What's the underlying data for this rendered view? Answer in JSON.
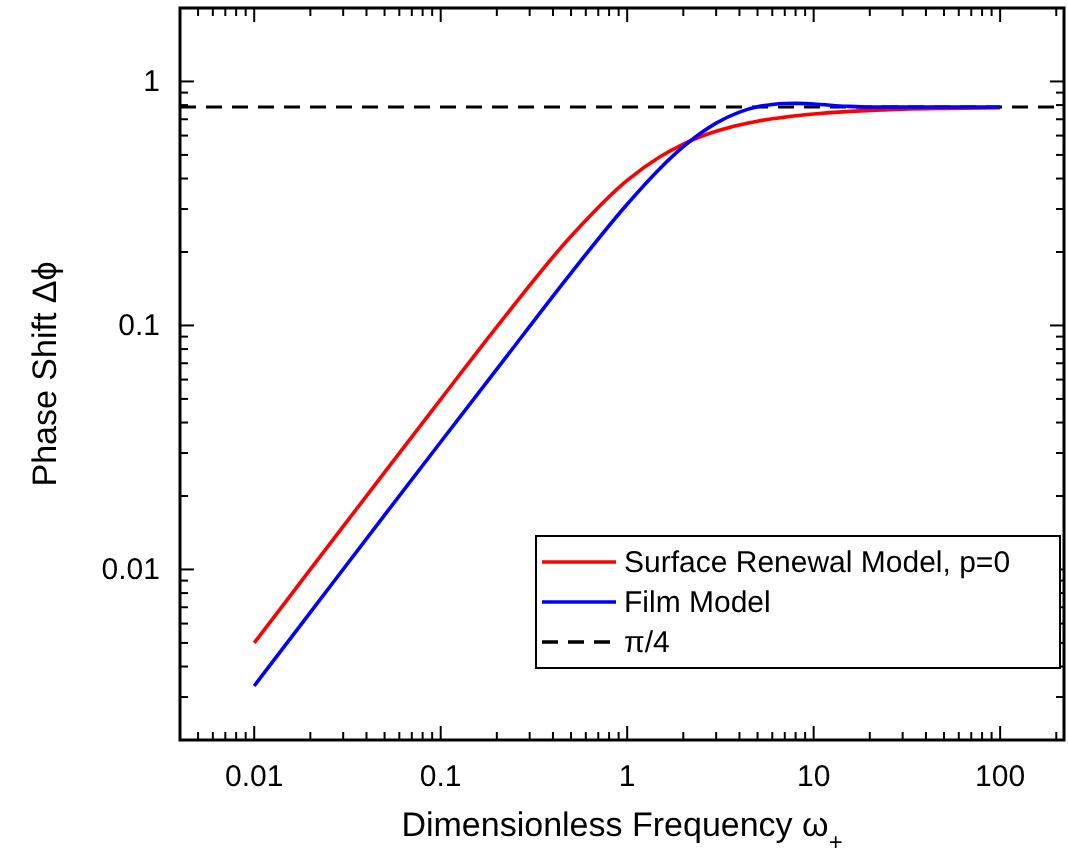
{
  "chart_data": {
    "type": "line",
    "xlabel": "Dimensionless Frequency  ω$_{+}$",
    "ylabel": "Phase Shift  Δϕ",
    "log": "xy",
    "xlim": [
      0.004,
      220
    ],
    "xticks": [
      0.01,
      0.1,
      1,
      10,
      100
    ],
    "ylim": [
      0.002,
      2
    ],
    "yticks": [
      0.01,
      0.1,
      1
    ],
    "grid": false,
    "legend": "bottom right",
    "line_style": "solid",
    "x": [
      0.01,
      0.02,
      0.05,
      0.1,
      0.2,
      0.5,
      1,
      1.5,
      2,
      3,
      4,
      5,
      6,
      7,
      8,
      10,
      15,
      20,
      30,
      50,
      100
    ],
    "series": [
      {
        "name": "Surface Renewal Model, p=0",
        "color": "#ff0000",
        "values": [
          0.005,
          0.01,
          0.025,
          0.0498,
          0.0987,
          0.232,
          0.393,
          0.491,
          0.554,
          0.625,
          0.663,
          0.687,
          0.703,
          0.714,
          0.723,
          0.735,
          0.752,
          0.76,
          0.769,
          0.775,
          0.78
        ]
      },
      {
        "name": "Film Model",
        "color": "#0000ff",
        "values": [
          0.00333,
          0.00667,
          0.0167,
          0.0333,
          0.0662,
          0.164,
          0.314,
          0.44,
          0.54,
          0.675,
          0.749,
          0.787,
          0.805,
          0.812,
          0.813,
          0.808,
          0.791,
          0.785,
          0.785,
          0.785,
          0.785
        ]
      }
    ],
    "ref_lines": [
      {
        "axis": "y",
        "value": 0.785,
        "label": "π/4",
        "color": "#000000",
        "line_style": "dashed"
      }
    ]
  }
}
